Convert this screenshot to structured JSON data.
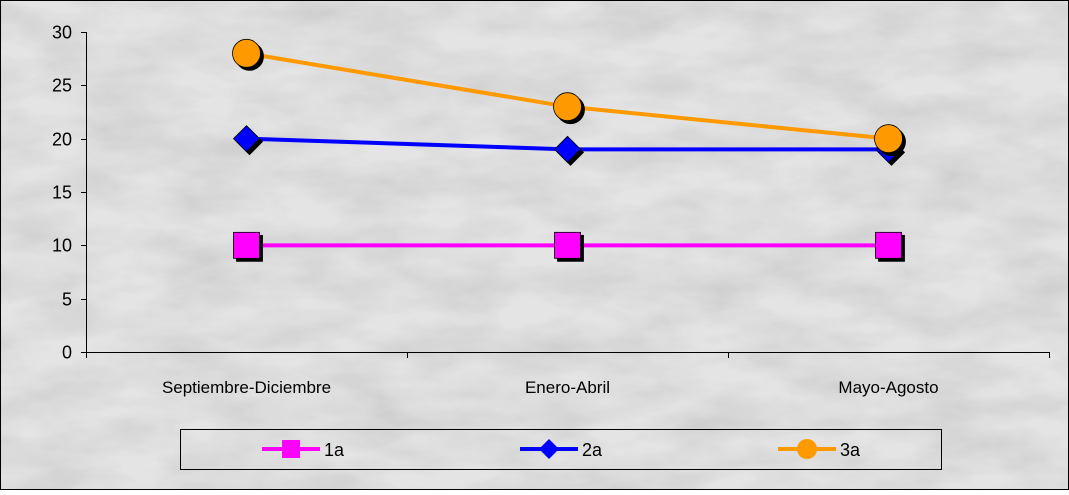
{
  "chart_data": {
    "type": "line",
    "categories": [
      "Septiembre-Diciembre",
      "Enero-Abril",
      "Mayo-Agosto"
    ],
    "series": [
      {
        "name": "1a",
        "values": [
          10,
          10,
          10
        ],
        "color": "#ff00ff",
        "marker": "square"
      },
      {
        "name": "2a",
        "values": [
          20,
          19,
          19
        ],
        "color": "#0000ff",
        "marker": "diamond"
      },
      {
        "name": "3a",
        "values": [
          28,
          23,
          20
        ],
        "color": "#ff9900",
        "marker": "circle"
      }
    ],
    "ylim": [
      0,
      30
    ],
    "yticks": [
      "0",
      "5",
      "10",
      "15",
      "20",
      "25",
      "30"
    ],
    "grid": false,
    "legend": "bottom",
    "background": "marble-gray"
  }
}
